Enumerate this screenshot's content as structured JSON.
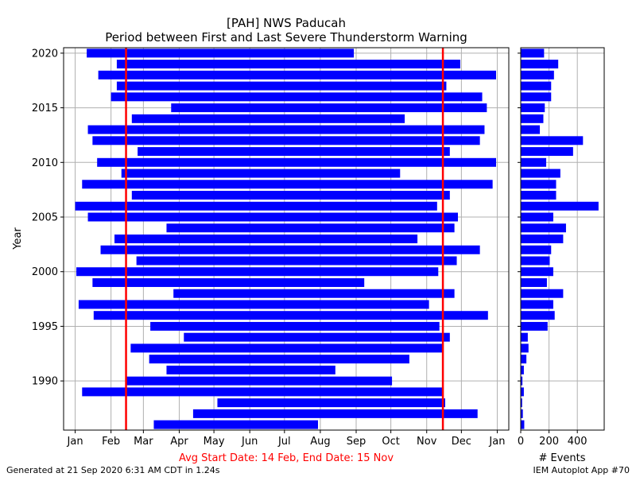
{
  "header": {
    "title_line1": "[PAH] NWS Paducah",
    "title_line2": "Period between First and Last Severe Thunderstorm Warning"
  },
  "footer": {
    "generated": "Generated at 21 Sep 2020 6:31 AM CDT in 1.24s",
    "app": "IEM Autoplot App #70"
  },
  "colors": {
    "bar": "#0000ff",
    "avg_line": "#ff0000",
    "grid": "#b0b0b0"
  },
  "chart_data": [
    {
      "type": "bar",
      "orientation": "horizontal-floating",
      "title": "[PAH] NWS Paducah\nPeriod between First and Last Severe Thunderstorm Warning",
      "xlabel": "Avg Start Date: 14 Feb, End Date: 15 Nov",
      "ylabel": "Year",
      "x_unit": "day of year",
      "xlim": [
        -10,
        375
      ],
      "ylim": [
        1985.5,
        2020.5
      ],
      "grid": true,
      "x_ticks": [
        {
          "label": "Jan",
          "day": 0
        },
        {
          "label": "Feb",
          "day": 31
        },
        {
          "label": "Mar",
          "day": 59
        },
        {
          "label": "Apr",
          "day": 90
        },
        {
          "label": "May",
          "day": 120
        },
        {
          "label": "Jun",
          "day": 151
        },
        {
          "label": "Jul",
          "day": 181
        },
        {
          "label": "Aug",
          "day": 212
        },
        {
          "label": "Sep",
          "day": 243
        },
        {
          "label": "Oct",
          "day": 273
        },
        {
          "label": "Nov",
          "day": 304
        },
        {
          "label": "Dec",
          "day": 334
        },
        {
          "label": "Jan",
          "day": 365
        }
      ],
      "y_ticks": [
        {
          "label": "1990",
          "value": 1990
        },
        {
          "label": "1995",
          "value": 1995
        },
        {
          "label": "2000",
          "value": 2000
        },
        {
          "label": "2005",
          "value": 2005
        },
        {
          "label": "2010",
          "value": 2010
        },
        {
          "label": "2015",
          "value": 2015
        },
        {
          "label": "2020",
          "value": 2020
        }
      ],
      "avg_start_day": 44,
      "avg_end_day": 318,
      "bars": [
        {
          "year": 1986,
          "start": 68,
          "end": 210
        },
        {
          "year": 1987,
          "start": 102,
          "end": 348
        },
        {
          "year": 1988,
          "start": 123,
          "end": 320
        },
        {
          "year": 1989,
          "start": 6,
          "end": 318
        },
        {
          "year": 1990,
          "start": 44,
          "end": 274
        },
        {
          "year": 1991,
          "start": 79,
          "end": 225
        },
        {
          "year": 1992,
          "start": 64,
          "end": 289
        },
        {
          "year": 1993,
          "start": 48,
          "end": 318
        },
        {
          "year": 1994,
          "start": 94,
          "end": 324
        },
        {
          "year": 1995,
          "start": 65,
          "end": 315
        },
        {
          "year": 1996,
          "start": 16,
          "end": 357
        },
        {
          "year": 1997,
          "start": 3,
          "end": 306
        },
        {
          "year": 1998,
          "start": 85,
          "end": 328
        },
        {
          "year": 1999,
          "start": 15,
          "end": 250
        },
        {
          "year": 2000,
          "start": 1,
          "end": 314
        },
        {
          "year": 2001,
          "start": 53,
          "end": 330
        },
        {
          "year": 2002,
          "start": 22,
          "end": 350
        },
        {
          "year": 2003,
          "start": 34,
          "end": 296
        },
        {
          "year": 2004,
          "start": 79,
          "end": 328
        },
        {
          "year": 2005,
          "start": 11,
          "end": 331
        },
        {
          "year": 2006,
          "start": 0,
          "end": 313
        },
        {
          "year": 2007,
          "start": 49,
          "end": 324
        },
        {
          "year": 2008,
          "start": 6,
          "end": 361
        },
        {
          "year": 2009,
          "start": 40,
          "end": 281
        },
        {
          "year": 2010,
          "start": 19,
          "end": 364
        },
        {
          "year": 2011,
          "start": 54,
          "end": 324
        },
        {
          "year": 2012,
          "start": 15,
          "end": 350
        },
        {
          "year": 2013,
          "start": 11,
          "end": 354
        },
        {
          "year": 2014,
          "start": 49,
          "end": 285
        },
        {
          "year": 2015,
          "start": 83,
          "end": 356
        },
        {
          "year": 2016,
          "start": 31,
          "end": 352
        },
        {
          "year": 2017,
          "start": 36,
          "end": 321
        },
        {
          "year": 2018,
          "start": 20,
          "end": 364
        },
        {
          "year": 2019,
          "start": 36,
          "end": 333
        },
        {
          "year": 2020,
          "start": 10,
          "end": 241
        }
      ]
    },
    {
      "type": "bar",
      "orientation": "horizontal",
      "xlabel": "# Events",
      "ylabel": "",
      "xlim": [
        0,
        590
      ],
      "ylim": [
        1985.5,
        2020.5
      ],
      "grid": true,
      "x_ticks": [
        {
          "label": "0",
          "value": 0
        },
        {
          "label": "200",
          "value": 200
        },
        {
          "label": "400",
          "value": 400
        }
      ],
      "values": [
        {
          "year": 1986,
          "events": 25
        },
        {
          "year": 1987,
          "events": 15
        },
        {
          "year": 1988,
          "events": 10
        },
        {
          "year": 1989,
          "events": 22
        },
        {
          "year": 1990,
          "events": 12
        },
        {
          "year": 1991,
          "events": 22
        },
        {
          "year": 1992,
          "events": 40
        },
        {
          "year": 1993,
          "events": 55
        },
        {
          "year": 1994,
          "events": 50
        },
        {
          "year": 1995,
          "events": 190
        },
        {
          "year": 1996,
          "events": 240
        },
        {
          "year": 1997,
          "events": 230
        },
        {
          "year": 1998,
          "events": 300
        },
        {
          "year": 1999,
          "events": 185
        },
        {
          "year": 2000,
          "events": 230
        },
        {
          "year": 2001,
          "events": 205
        },
        {
          "year": 2002,
          "events": 215
        },
        {
          "year": 2003,
          "events": 300
        },
        {
          "year": 2004,
          "events": 320
        },
        {
          "year": 2005,
          "events": 230
        },
        {
          "year": 2006,
          "events": 550
        },
        {
          "year": 2007,
          "events": 250
        },
        {
          "year": 2008,
          "events": 250
        },
        {
          "year": 2009,
          "events": 280
        },
        {
          "year": 2010,
          "events": 180
        },
        {
          "year": 2011,
          "events": 370
        },
        {
          "year": 2012,
          "events": 440
        },
        {
          "year": 2013,
          "events": 135
        },
        {
          "year": 2014,
          "events": 160
        },
        {
          "year": 2015,
          "events": 170
        },
        {
          "year": 2016,
          "events": 215
        },
        {
          "year": 2017,
          "events": 215
        },
        {
          "year": 2018,
          "events": 235
        },
        {
          "year": 2019,
          "events": 265
        },
        {
          "year": 2020,
          "events": 165
        }
      ]
    }
  ]
}
